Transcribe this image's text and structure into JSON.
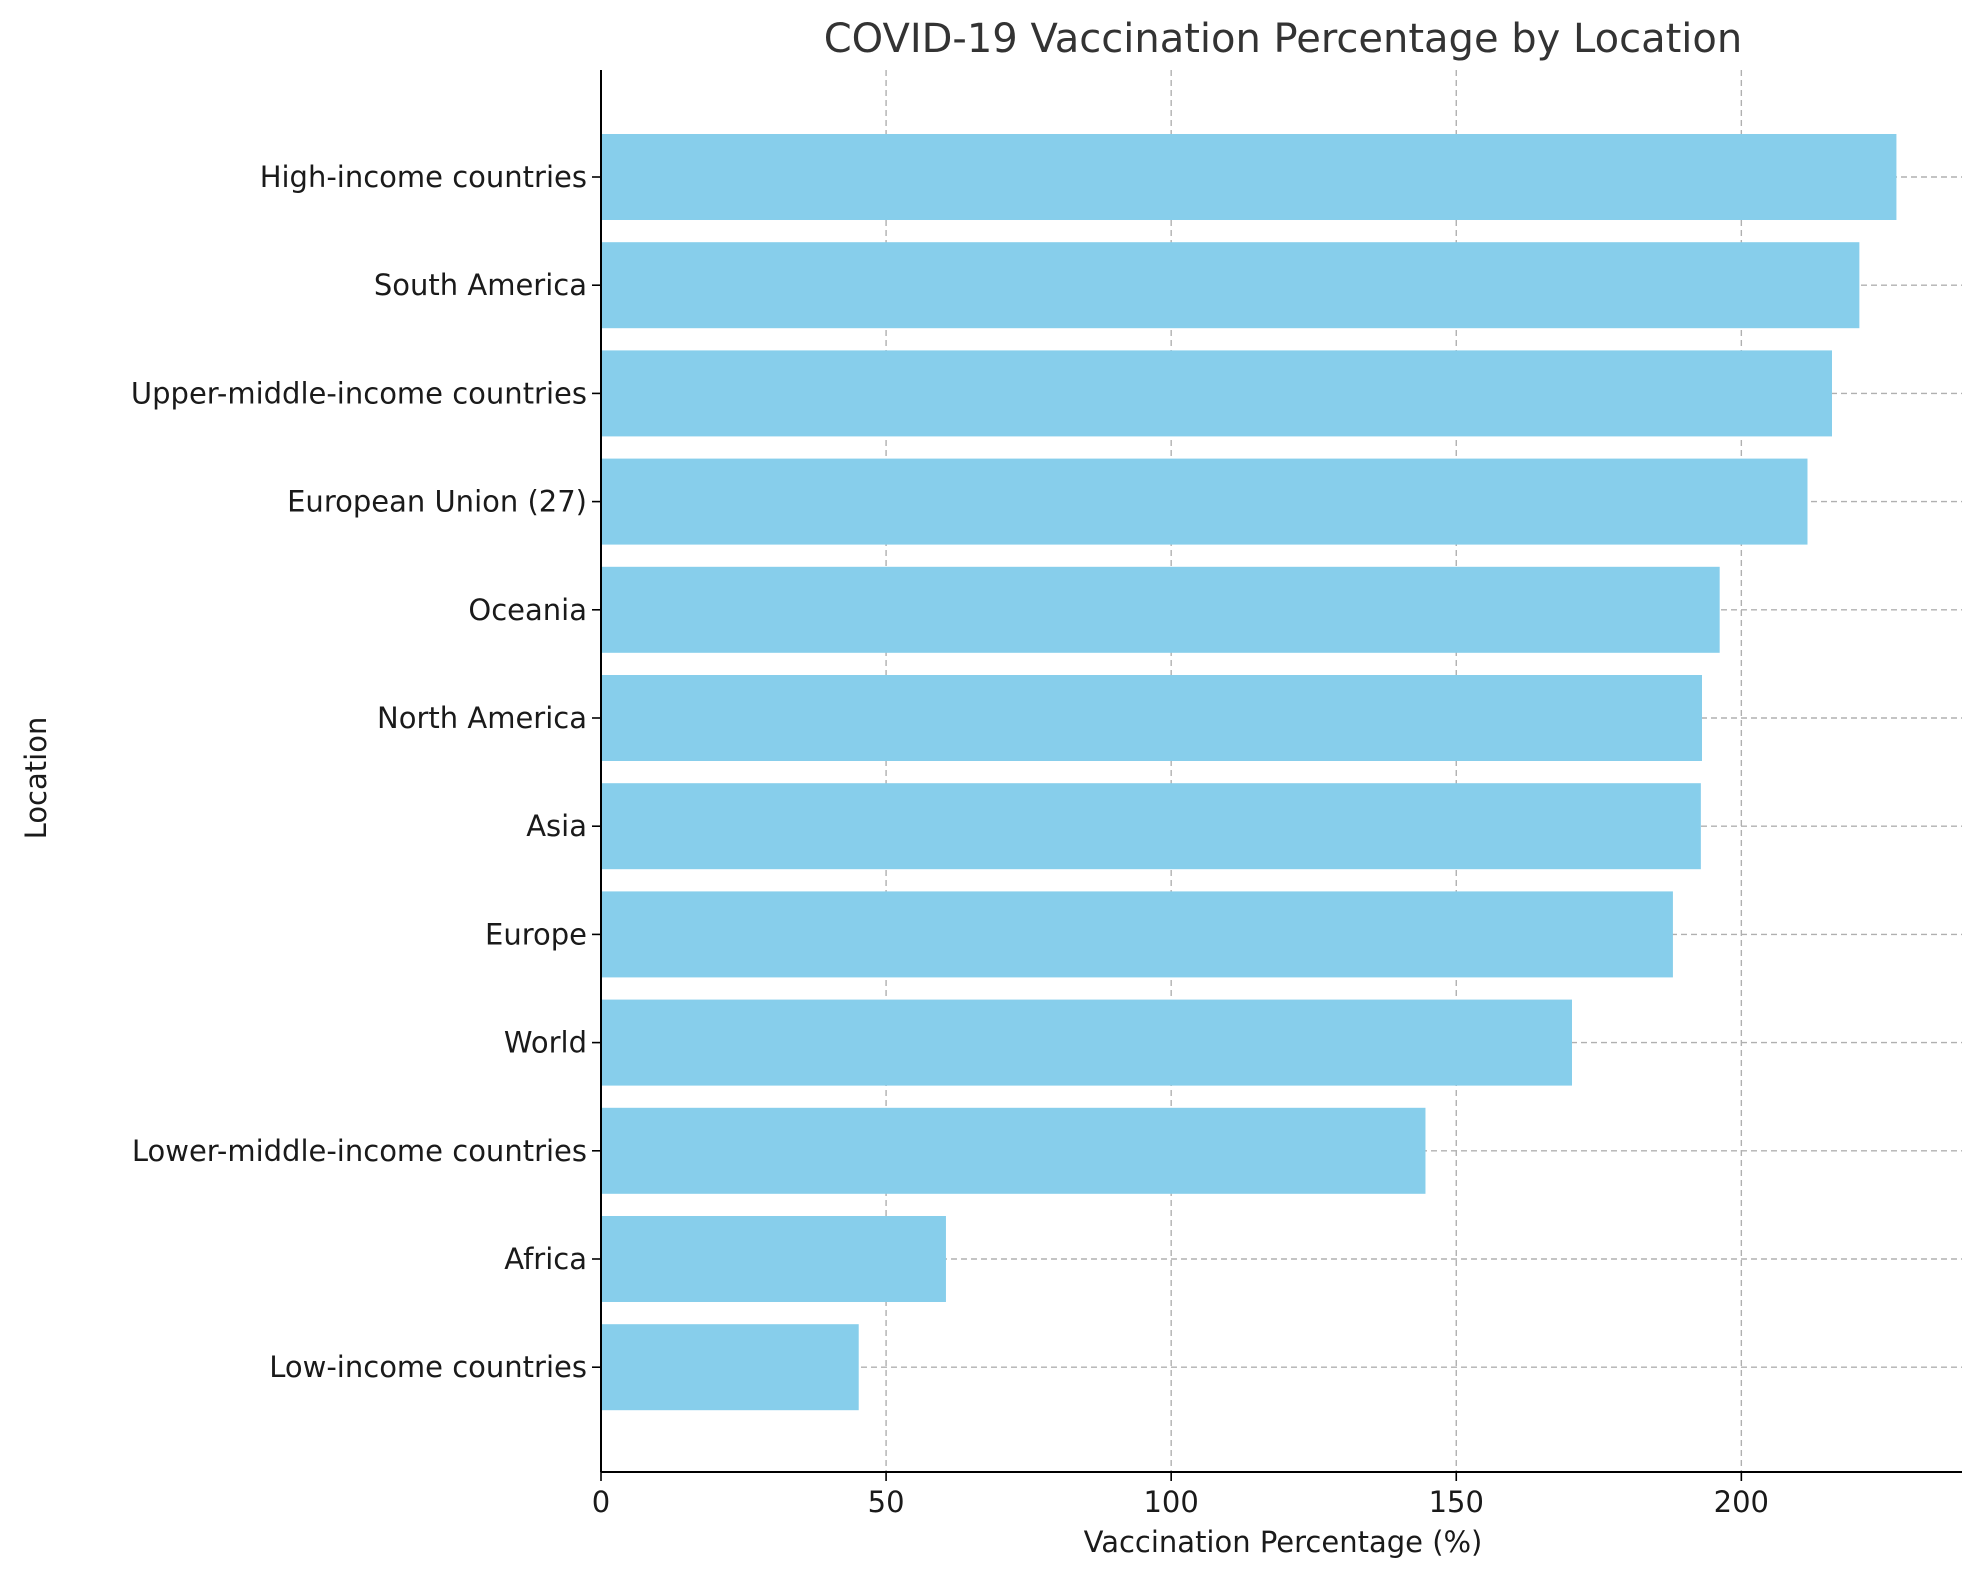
{
  "chart_data": {
    "type": "bar",
    "orientation": "horizontal",
    "title": "COVID-19 Vaccination Percentage by Location",
    "xlabel": "Vaccination Percentage (%)",
    "ylabel": "Location",
    "categories": [
      "High-income countries",
      "South America",
      "Upper-middle-income countries",
      "European Union (27)",
      "Oceania",
      "North America",
      "Asia",
      "Europe",
      "World",
      "Lower-middle-income countries",
      "Africa",
      "Low-income countries"
    ],
    "values": [
      227.2,
      220.7,
      215.9,
      211.6,
      196.2,
      193.1,
      192.9,
      188.0,
      170.3,
      144.6,
      60.5,
      45.2
    ],
    "xlim": [
      0,
      238.7
    ],
    "xticks": [
      0,
      50,
      100,
      150,
      200
    ],
    "grid": true,
    "grid_style": "dashed",
    "legend": "none",
    "colors": {
      "bar": "#87ceeb",
      "grid": "#b0b0b0",
      "axis": "#000000",
      "text": "#1a1a1a",
      "title": "#333333"
    }
  }
}
